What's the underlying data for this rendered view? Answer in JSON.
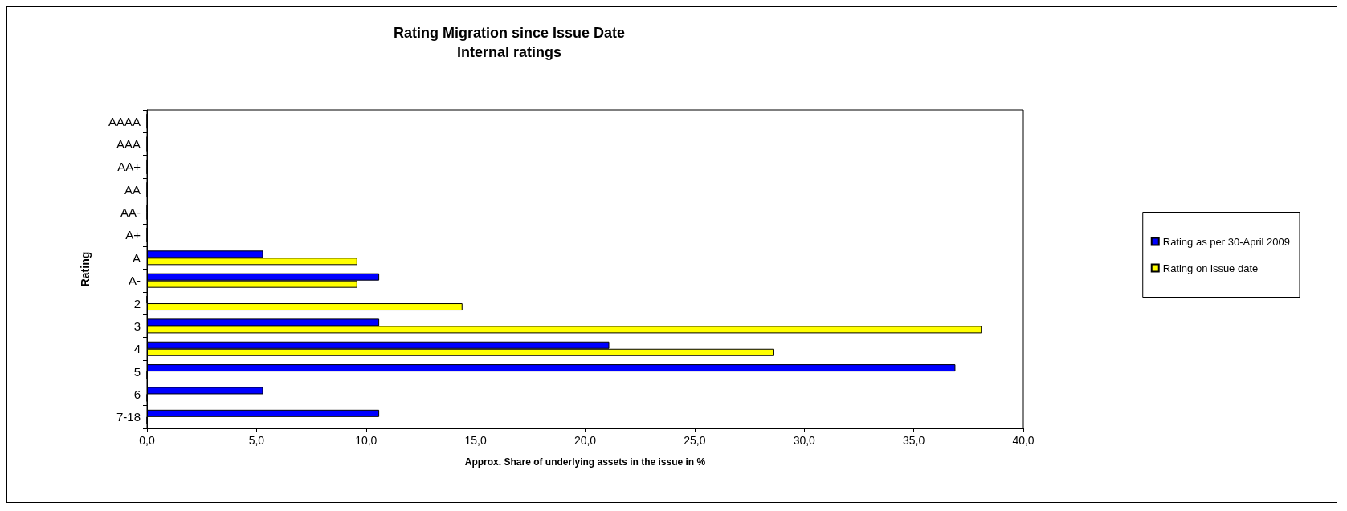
{
  "chart_data": {
    "type": "bar",
    "orientation": "horizontal",
    "title": "Rating Migration since Issue Date",
    "subtitle": "Internal ratings",
    "xlabel": "Approx. Share of underlying assets in the issue in %",
    "ylabel": "Rating",
    "categories": [
      "AAAA",
      "AAA",
      "AA+",
      "AA",
      "AA-",
      "A+",
      "A",
      "A-",
      "2",
      "3",
      "4",
      "5",
      "6",
      "7-18"
    ],
    "series": [
      {
        "name": "Rating as per 30-April 2009",
        "color": "#0000ff",
        "values": [
          0,
          0,
          0,
          0,
          0,
          0,
          5.3,
          10.6,
          0,
          10.6,
          21.1,
          36.9,
          5.3,
          10.6
        ]
      },
      {
        "name": "Rating on issue date",
        "color": "#ffff00",
        "values": [
          0,
          0,
          0,
          0,
          0,
          0,
          9.6,
          9.6,
          14.4,
          38.1,
          28.6,
          0,
          0,
          0
        ]
      }
    ],
    "xlim": [
      0,
      40
    ],
    "xticks": [
      {
        "value": 0,
        "label": "0,0"
      },
      {
        "value": 5,
        "label": "5,0"
      },
      {
        "value": 10,
        "label": "10,0"
      },
      {
        "value": 15,
        "label": "15,0"
      },
      {
        "value": 20,
        "label": "20,0"
      },
      {
        "value": 25,
        "label": "25,0"
      },
      {
        "value": 30,
        "label": "30,0"
      },
      {
        "value": 35,
        "label": "35,0"
      },
      {
        "value": 40,
        "label": "40,0"
      }
    ],
    "grid": false,
    "legend": "right"
  }
}
